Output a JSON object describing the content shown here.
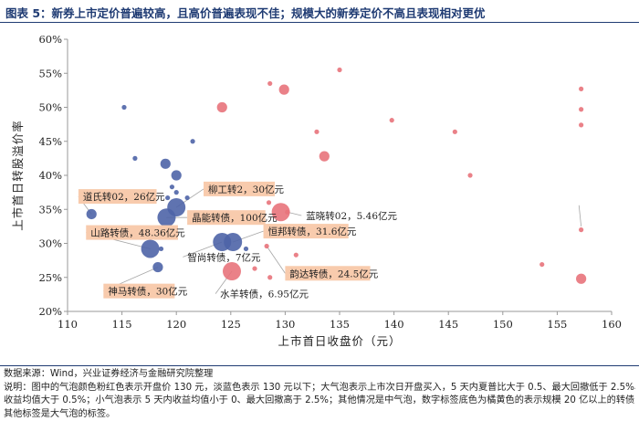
{
  "header": {
    "title": "图表 5：新券上市定价普遍较高，且高价普遍表现不佳；规模大的新券定价不高且表现相对更优"
  },
  "footer": {
    "source": "数据来源：Wind，兴业证券经济与金融研究院整理",
    "note_1": "说明：图中的气泡颜色粉红色表示开盘价 130 元，淡蓝色表示 130 元以下；大气泡表示上市次日开盘买入，5 天内夏普比大于 0.5、最大回撤低于 2.5%、",
    "note_2": "收益均值大于 0.5%；小气泡表示 5 天内收益均值小于 0、最大回撤高于 2.5%；其他情况是中气泡，数字标签底色为橘黄色的表示规模 20 亿以上的转债，",
    "note_3": "其他标签是大气泡的标签。"
  },
  "colors": {
    "blue": "#4e64a7",
    "pink": "#e8737b",
    "label_bg": "#f8cbad",
    "title": "#1f3b73"
  },
  "chart_data": {
    "type": "scatter",
    "title": "",
    "xlabel": "上市首日收盘价（元）",
    "ylabel": "上市首日转股溢价率",
    "xlim": [
      110,
      160
    ],
    "ylim": [
      0.2,
      0.6
    ],
    "x_ticks": [
      "110",
      "115",
      "120",
      "125",
      "130",
      "135",
      "140",
      "145",
      "150",
      "155",
      "160"
    ],
    "y_ticks": [
      "20%",
      "25%",
      "30%",
      "35%",
      "40%",
      "45%",
      "50%",
      "55%",
      "60%"
    ],
    "points": [
      {
        "x": 115.2,
        "y": 0.5,
        "size": "small",
        "color": "blue"
      },
      {
        "x": 116.2,
        "y": 0.425,
        "size": "small",
        "color": "blue"
      },
      {
        "x": 121.5,
        "y": 0.45,
        "size": "small",
        "color": "blue"
      },
      {
        "x": 119.0,
        "y": 0.417,
        "size": "medium",
        "color": "blue"
      },
      {
        "x": 120.0,
        "y": 0.4,
        "size": "medium",
        "color": "blue"
      },
      {
        "x": 119.6,
        "y": 0.383,
        "size": "small",
        "color": "blue"
      },
      {
        "x": 120.0,
        "y": 0.375,
        "size": "small",
        "color": "blue"
      },
      {
        "x": 119.2,
        "y": 0.367,
        "size": "small",
        "color": "blue"
      },
      {
        "x": 121.0,
        "y": 0.367,
        "size": "small",
        "color": "blue"
      },
      {
        "x": 112.2,
        "y": 0.343,
        "size": "medium",
        "color": "blue"
      },
      {
        "x": 120.0,
        "y": 0.353,
        "size": "large",
        "color": "blue"
      },
      {
        "x": 119.1,
        "y": 0.338,
        "size": "large",
        "color": "blue"
      },
      {
        "x": 117.6,
        "y": 0.292,
        "size": "large",
        "color": "blue"
      },
      {
        "x": 118.6,
        "y": 0.292,
        "size": "small",
        "color": "blue"
      },
      {
        "x": 118.3,
        "y": 0.265,
        "size": "medium",
        "color": "blue"
      },
      {
        "x": 124.2,
        "y": 0.302,
        "size": "large",
        "color": "blue"
      },
      {
        "x": 125.2,
        "y": 0.302,
        "size": "large",
        "color": "blue"
      },
      {
        "x": 126.4,
        "y": 0.292,
        "size": "small",
        "color": "blue"
      },
      {
        "x": 124.2,
        "y": 0.5,
        "size": "medium",
        "color": "pink"
      },
      {
        "x": 128.6,
        "y": 0.535,
        "size": "small",
        "color": "pink"
      },
      {
        "x": 129.9,
        "y": 0.526,
        "size": "medium",
        "color": "pink"
      },
      {
        "x": 135.0,
        "y": 0.555,
        "size": "small",
        "color": "pink"
      },
      {
        "x": 139.8,
        "y": 0.481,
        "size": "small",
        "color": "pink"
      },
      {
        "x": 132.9,
        "y": 0.464,
        "size": "small",
        "color": "pink"
      },
      {
        "x": 145.6,
        "y": 0.464,
        "size": "small",
        "color": "pink"
      },
      {
        "x": 133.6,
        "y": 0.428,
        "size": "medium",
        "color": "pink"
      },
      {
        "x": 147.0,
        "y": 0.4,
        "size": "small",
        "color": "pink"
      },
      {
        "x": 157.2,
        "y": 0.527,
        "size": "small",
        "color": "pink"
      },
      {
        "x": 157.2,
        "y": 0.497,
        "size": "small",
        "color": "pink"
      },
      {
        "x": 157.2,
        "y": 0.474,
        "size": "small",
        "color": "pink"
      },
      {
        "x": 128.5,
        "y": 0.36,
        "size": "small",
        "color": "pink"
      },
      {
        "x": 129.6,
        "y": 0.346,
        "size": "large",
        "color": "pink"
      },
      {
        "x": 130.2,
        "y": 0.346,
        "size": "small",
        "color": "pink"
      },
      {
        "x": 128.3,
        "y": 0.296,
        "size": "small",
        "color": "pink"
      },
      {
        "x": 131.0,
        "y": 0.283,
        "size": "small",
        "color": "pink"
      },
      {
        "x": 127.2,
        "y": 0.263,
        "size": "small",
        "color": "pink"
      },
      {
        "x": 125.1,
        "y": 0.259,
        "size": "large",
        "color": "pink"
      },
      {
        "x": 128.6,
        "y": 0.25,
        "size": "small",
        "color": "pink"
      },
      {
        "x": 153.6,
        "y": 0.269,
        "size": "small",
        "color": "pink"
      },
      {
        "x": 157.2,
        "y": 0.32,
        "size": "small",
        "color": "pink"
      },
      {
        "x": 157.2,
        "y": 0.248,
        "size": "medium",
        "color": "pink"
      }
    ],
    "labels": [
      {
        "text": "道氏转02，26亿元",
        "x": 112.2,
        "y": 0.343,
        "orange": true,
        "lx": 111.0,
        "ly": 0.369
      },
      {
        "text": "柳工转2，30亿元",
        "x": 120.0,
        "y": 0.353,
        "orange": true,
        "lx": 122.5,
        "ly": 0.38
      },
      {
        "text": "晶能转债，100亿元",
        "x": 119.1,
        "y": 0.338,
        "orange": true,
        "lx": 121.0,
        "ly": 0.338
      },
      {
        "text": "山路转债，48.36亿元",
        "x": 117.6,
        "y": 0.292,
        "orange": true,
        "lx": 111.7,
        "ly": 0.316
      },
      {
        "text": "恒邦转债，31.6亿元",
        "x": 125.2,
        "y": 0.302,
        "orange": true,
        "lx": 128.0,
        "ly": 0.318
      },
      {
        "text": "蓝晓转02，5.46亿元",
        "x": 130.2,
        "y": 0.346,
        "orange": false,
        "lx": 131.5,
        "ly": 0.341
      },
      {
        "text": "智尚转债，7亿元",
        "x": 124.2,
        "y": 0.302,
        "orange": false,
        "lx": 120.6,
        "ly": 0.28
      },
      {
        "text": "韵达转债，24.5亿元",
        "x": 128.3,
        "y": 0.296,
        "orange": true,
        "lx": 130.0,
        "ly": 0.256
      },
      {
        "text": "神马转债，30亿元",
        "x": 118.3,
        "y": 0.265,
        "orange": true,
        "lx": 113.3,
        "ly": 0.23
      },
      {
        "text": "水羊转债，6.95亿元",
        "x": 125.1,
        "y": 0.259,
        "orange": false,
        "lx": 123.6,
        "ly": 0.226
      }
    ]
  }
}
